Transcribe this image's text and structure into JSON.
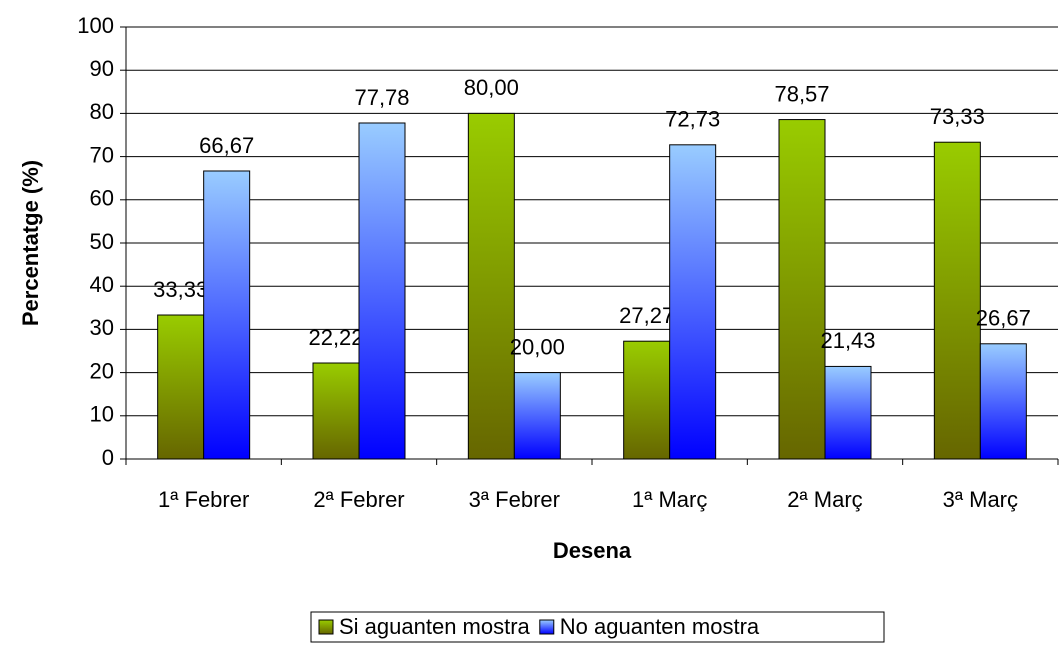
{
  "chart_data": {
    "type": "bar",
    "x_label": "Desena",
    "y_label": "Percentatge (%)",
    "categories": [
      "1ª Febrer",
      "2ª Febrer",
      "3ª Febrer",
      "1ª Març",
      "2ª Març",
      "3ª Març"
    ],
    "series": [
      {
        "name": "Si aguanten mostra",
        "color": "#99cc00",
        "values": [
          33.33,
          22.22,
          80.0,
          27.27,
          78.57,
          73.33
        ],
        "value_labels": [
          "33,33",
          "22,22",
          "80,00",
          "27,27",
          "78,57",
          "73,33"
        ]
      },
      {
        "name": "No aguanten mostra",
        "color": "#99ccff",
        "values": [
          66.67,
          77.78,
          20.0,
          72.73,
          21.43,
          26.67
        ],
        "value_labels": [
          "66,67",
          "77,78",
          "20,00",
          "72,73",
          "21,43",
          "26,67"
        ]
      }
    ],
    "ylim": [
      0,
      100
    ],
    "yticks": [
      0,
      10,
      20,
      30,
      40,
      50,
      60,
      70,
      80,
      90,
      100
    ],
    "grid": true,
    "legend": "bottom"
  }
}
